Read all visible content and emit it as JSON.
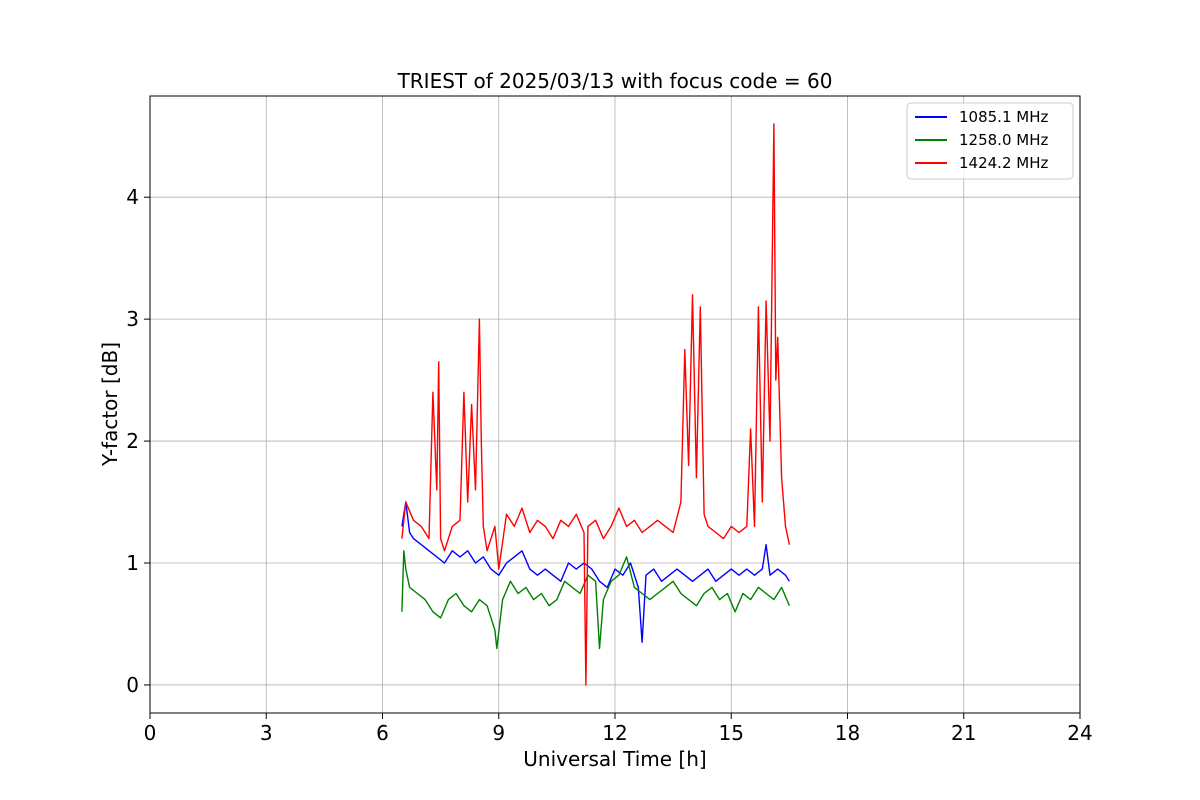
{
  "chart_data": {
    "type": "line",
    "title": "TRIEST of 2025/03/13 with focus code = 60",
    "xlabel": "Universal Time [h]",
    "ylabel": "Y-factor [dB]",
    "xlim": [
      0,
      24
    ],
    "ylim": [
      -0.23,
      4.83
    ],
    "xticks": [
      0,
      3,
      6,
      9,
      12,
      15,
      18,
      21,
      24
    ],
    "yticks": [
      0,
      1,
      2,
      3,
      4
    ],
    "grid": true,
    "legend_position": "top-right",
    "series": [
      {
        "name": "1085.1 MHz",
        "color": "#0000ff",
        "x": [
          6.5,
          6.6,
          6.7,
          6.8,
          7.0,
          7.2,
          7.4,
          7.6,
          7.8,
          8.0,
          8.2,
          8.4,
          8.6,
          8.8,
          9.0,
          9.2,
          9.4,
          9.6,
          9.8,
          10.0,
          10.2,
          10.4,
          10.6,
          10.8,
          11.0,
          11.2,
          11.4,
          11.6,
          11.8,
          12.0,
          12.2,
          12.4,
          12.6,
          12.7,
          12.8,
          13.0,
          13.2,
          13.4,
          13.6,
          13.8,
          14.0,
          14.2,
          14.4,
          14.6,
          14.8,
          15.0,
          15.2,
          15.4,
          15.6,
          15.8,
          15.9,
          16.0,
          16.2,
          16.4,
          16.5
        ],
        "y": [
          1.3,
          1.5,
          1.25,
          1.2,
          1.15,
          1.1,
          1.05,
          1.0,
          1.1,
          1.05,
          1.1,
          1.0,
          1.05,
          0.95,
          0.9,
          1.0,
          1.05,
          1.1,
          0.95,
          0.9,
          0.95,
          0.9,
          0.85,
          1.0,
          0.95,
          1.0,
          0.95,
          0.85,
          0.8,
          0.95,
          0.9,
          1.0,
          0.8,
          0.35,
          0.9,
          0.95,
          0.85,
          0.9,
          0.95,
          0.9,
          0.85,
          0.9,
          0.95,
          0.85,
          0.9,
          0.95,
          0.9,
          0.95,
          0.9,
          0.95,
          1.15,
          0.9,
          0.95,
          0.9,
          0.85
        ]
      },
      {
        "name": "1258.0 MHz",
        "color": "#008000",
        "x": [
          6.5,
          6.55,
          6.6,
          6.7,
          6.9,
          7.1,
          7.3,
          7.5,
          7.7,
          7.9,
          8.1,
          8.3,
          8.5,
          8.7,
          8.9,
          8.95,
          9.1,
          9.3,
          9.5,
          9.7,
          9.9,
          10.1,
          10.3,
          10.5,
          10.7,
          10.9,
          11.1,
          11.3,
          11.5,
          11.6,
          11.7,
          11.9,
          12.1,
          12.3,
          12.5,
          12.7,
          12.9,
          13.1,
          13.3,
          13.5,
          13.7,
          13.9,
          14.1,
          14.3,
          14.5,
          14.7,
          14.9,
          15.1,
          15.3,
          15.5,
          15.7,
          15.9,
          16.1,
          16.3,
          16.5
        ],
        "y": [
          0.6,
          1.1,
          0.95,
          0.8,
          0.75,
          0.7,
          0.6,
          0.55,
          0.7,
          0.75,
          0.65,
          0.6,
          0.7,
          0.65,
          0.45,
          0.3,
          0.7,
          0.85,
          0.75,
          0.8,
          0.7,
          0.75,
          0.65,
          0.7,
          0.85,
          0.8,
          0.75,
          0.9,
          0.85,
          0.3,
          0.7,
          0.85,
          0.9,
          1.05,
          0.8,
          0.75,
          0.7,
          0.75,
          0.8,
          0.85,
          0.75,
          0.7,
          0.65,
          0.75,
          0.8,
          0.7,
          0.75,
          0.6,
          0.75,
          0.7,
          0.8,
          0.75,
          0.7,
          0.8,
          0.65
        ]
      },
      {
        "name": "1424.2 MHz",
        "color": "#ff0000",
        "x": [
          6.5,
          6.6,
          6.8,
          7.0,
          7.2,
          7.3,
          7.4,
          7.45,
          7.5,
          7.6,
          7.8,
          8.0,
          8.1,
          8.2,
          8.3,
          8.4,
          8.5,
          8.55,
          8.6,
          8.7,
          8.9,
          9.0,
          9.2,
          9.4,
          9.6,
          9.8,
          10.0,
          10.2,
          10.4,
          10.6,
          10.8,
          11.0,
          11.2,
          11.25,
          11.3,
          11.5,
          11.7,
          11.9,
          12.1,
          12.3,
          12.5,
          12.7,
          12.9,
          13.1,
          13.3,
          13.5,
          13.7,
          13.8,
          13.9,
          14.0,
          14.1,
          14.2,
          14.3,
          14.4,
          14.6,
          14.8,
          15.0,
          15.2,
          15.4,
          15.5,
          15.6,
          15.7,
          15.8,
          15.9,
          16.0,
          16.1,
          16.15,
          16.2,
          16.3,
          16.4,
          16.5
        ],
        "y": [
          1.2,
          1.5,
          1.35,
          1.3,
          1.2,
          2.4,
          1.6,
          2.65,
          1.2,
          1.1,
          1.3,
          1.35,
          2.4,
          1.5,
          2.3,
          1.6,
          3.0,
          2.0,
          1.3,
          1.1,
          1.3,
          0.95,
          1.4,
          1.3,
          1.45,
          1.25,
          1.35,
          1.3,
          1.2,
          1.35,
          1.3,
          1.4,
          1.25,
          0.0,
          1.3,
          1.35,
          1.2,
          1.3,
          1.45,
          1.3,
          1.35,
          1.25,
          1.3,
          1.35,
          1.3,
          1.25,
          1.5,
          2.75,
          1.8,
          3.2,
          1.7,
          3.1,
          1.4,
          1.3,
          1.25,
          1.2,
          1.3,
          1.25,
          1.3,
          2.1,
          1.3,
          3.1,
          1.5,
          3.15,
          2.0,
          4.6,
          2.5,
          2.85,
          1.7,
          1.3,
          1.15
        ]
      }
    ]
  }
}
